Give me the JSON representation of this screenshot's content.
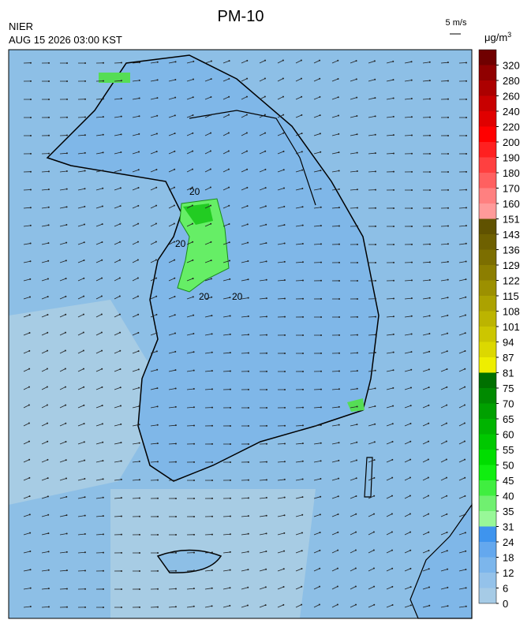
{
  "header": {
    "title": "PM-10",
    "agency": "NIER",
    "timestamp": "AUG 15 2026 03:00 KST",
    "wind_scale": "5 m/s",
    "unit": "μg/m",
    "unit_exponent": "3"
  },
  "map": {
    "contour_labels": [
      "20",
      "20",
      "20",
      "20"
    ]
  },
  "colorbar": {
    "ticks": [
      0,
      6,
      12,
      18,
      24,
      31,
      35,
      40,
      45,
      50,
      55,
      60,
      65,
      70,
      75,
      81,
      87,
      94,
      101,
      108,
      115,
      122,
      129,
      136,
      143,
      151,
      160,
      170,
      180,
      190,
      200,
      220,
      240,
      260,
      280,
      320
    ],
    "colors": [
      "#a6cbe6",
      "#94c2ea",
      "#7cb6ec",
      "#64a8ee",
      "#3e94ee",
      "#98f898",
      "#70f070",
      "#40ee40",
      "#10ee10",
      "#00dd00",
      "#00c800",
      "#00b400",
      "#00a000",
      "#008a00",
      "#007000",
      "#eeee00",
      "#dcd800",
      "#ccc600",
      "#bcb400",
      "#aca200",
      "#9c9000",
      "#8c7e00",
      "#7c6e00",
      "#6e6000",
      "#605200",
      "#ff9a9a",
      "#ff8080",
      "#ff6060",
      "#ff4040",
      "#ff2020",
      "#ff0000",
      "#e00000",
      "#c80000",
      "#ac0000",
      "#900000",
      "#700000"
    ]
  }
}
